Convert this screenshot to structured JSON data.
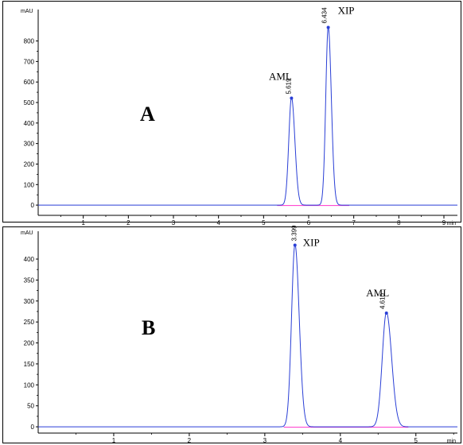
{
  "chart_data": [
    {
      "type": "line",
      "panel_label": "A",
      "ylabel": "mAU",
      "xlabel": "min",
      "xlim": [
        0,
        9.3
      ],
      "ylim": [
        -50,
        930
      ],
      "yticks": [
        0,
        100,
        200,
        300,
        400,
        500,
        600,
        700,
        800
      ],
      "xticks": [
        1,
        2,
        3,
        4,
        5,
        6,
        7,
        8,
        9
      ],
      "baseline_y": 0,
      "peaks": [
        {
          "name": "AML",
          "rt": 5.619,
          "rt_label": "5.619",
          "height": 525,
          "width": 0.06
        },
        {
          "name": "XIP",
          "rt": 6.434,
          "rt_label": "6.434",
          "height": 870,
          "width": 0.055
        }
      ],
      "integration_baseline": [
        {
          "x1": 5.3,
          "x2": 6.9
        }
      ]
    },
    {
      "type": "line",
      "panel_label": "B",
      "ylabel": "mAU",
      "xlabel": "min",
      "xlim": [
        0,
        5.55
      ],
      "ylim": [
        -15,
        455
      ],
      "yticks": [
        0,
        50,
        100,
        150,
        200,
        250,
        300,
        350,
        400
      ],
      "xticks": [
        1,
        2,
        3,
        4,
        5
      ],
      "baseline_y": 0,
      "peaks": [
        {
          "name": "XIP",
          "rt": 3.399,
          "rt_label": "3.399",
          "height": 435,
          "width": 0.045
        },
        {
          "name": "AML",
          "rt": 4.61,
          "rt_label": "4.610",
          "height": 273,
          "width": 0.055
        }
      ],
      "integration_baseline": [
        {
          "x1": 3.25,
          "x2": 4.9
        }
      ]
    }
  ]
}
